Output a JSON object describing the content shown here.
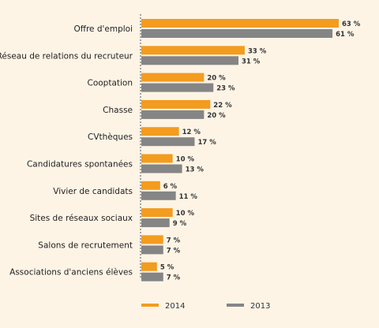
{
  "chart_data": {
    "type": "bar",
    "orientation": "horizontal",
    "categories": [
      "Offre d'emploi",
      "Réseau de relations du recruteur",
      "Cooptation",
      "Chasse",
      "CVthèques",
      "Candidatures spontanées",
      "Vivier de candidats",
      "Sites de réseaux sociaux",
      "Salons de recrutement",
      "Associations d'anciens élèves"
    ],
    "series": [
      {
        "name": "2014",
        "color": "#f39c1f",
        "values": [
          63,
          33,
          20,
          22,
          12,
          10,
          6,
          10,
          7,
          5
        ],
        "labels": [
          "63 %",
          "33 %",
          "20 %",
          "22 %",
          "12 %",
          "10 %",
          "6 %",
          "10 %",
          "7 %",
          "5 %"
        ]
      },
      {
        "name": "2013",
        "color": "#858585",
        "values": [
          61,
          31,
          23,
          20,
          17,
          13,
          11,
          9,
          7,
          7
        ],
        "labels": [
          "61 %",
          "31 %",
          "23 %",
          "20 %",
          "17 %",
          "13 %",
          "11 %",
          "9 %",
          "7 %",
          "7 %"
        ]
      }
    ],
    "xlim": [
      0,
      63
    ],
    "grid": false,
    "legend": "bottom",
    "title": "",
    "xlabel": "",
    "ylabel": ""
  }
}
